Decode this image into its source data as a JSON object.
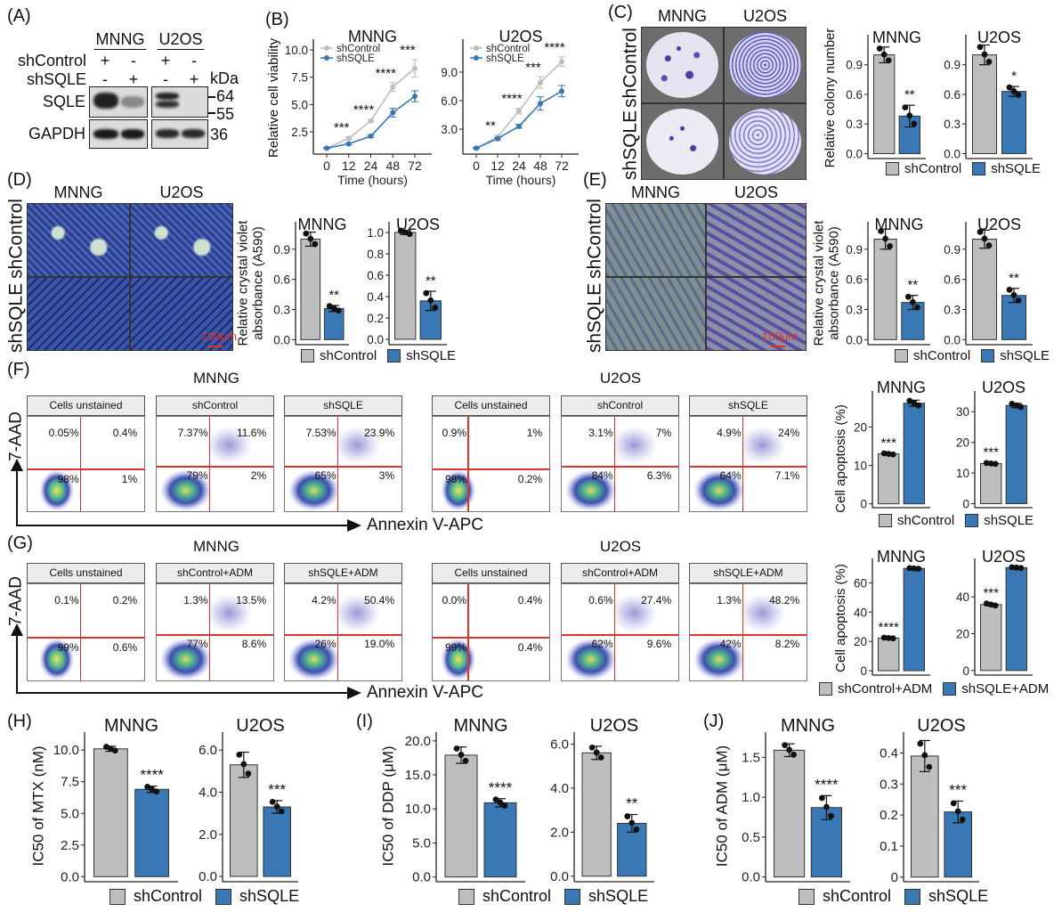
{
  "panel_labels": [
    "(A)",
    "(B)",
    "(C)",
    "(D)",
    "(E)",
    "(F)",
    "(G)",
    "(H)",
    "(I)",
    "(J)"
  ],
  "colors": {
    "control": "#BEBEBE",
    "sqle": "#3A78B5",
    "quadrant": "#E0312B",
    "scale_bar": "#E0312B"
  },
  "panelA": {
    "cell_lines": [
      "MNNG",
      "U2OS"
    ],
    "rows": [
      {
        "label": "shControl",
        "signs": [
          "+",
          "-",
          "+",
          "-"
        ]
      },
      {
        "label": "shSQLE",
        "signs": [
          "-",
          "+",
          "-",
          "+"
        ]
      }
    ],
    "kda_label": "kDa",
    "blots": [
      {
        "name": "SQLE",
        "markers": [
          "64",
          "55"
        ]
      },
      {
        "name": "GAPDH",
        "markers": [
          "36"
        ]
      }
    ]
  },
  "panelC": {
    "columns": [
      "MNNG",
      "U2OS"
    ],
    "rows": [
      "shControl",
      "shSQLE"
    ]
  },
  "panelD": {
    "columns": [
      "MNNG",
      "U2OS"
    ],
    "rows": [
      "shControl",
      "shSQLE"
    ],
    "scale_bar": "100μm"
  },
  "panelE": {
    "columns": [
      "MNNG",
      "U2OS"
    ],
    "rows": [
      "shControl",
      "shSQLE"
    ],
    "scale_bar": "100μm"
  },
  "flow": [
    {
      "panel": "F",
      "y_axis": "7-AAD",
      "x_axis": "Annexin V-APC",
      "groups": [
        {
          "title": "MNNG",
          "plots": [
            {
              "label": "Cells unstained",
              "quadrants": [
                "0.05%",
                "0.4%",
                "98%",
                "1%"
              ]
            },
            {
              "label": "shControl",
              "quadrants": [
                "7.37%",
                "11.6%",
                "79%",
                "2%"
              ]
            },
            {
              "label": "shSQLE",
              "quadrants": [
                "7.53%",
                "23.9%",
                "65%",
                "3%"
              ]
            }
          ]
        },
        {
          "title": "U2OS",
          "plots": [
            {
              "label": "Cells unstained",
              "quadrants": [
                "0.9%",
                "1%",
                "98%",
                "0.2%"
              ]
            },
            {
              "label": "shControl",
              "quadrants": [
                "3.1%",
                "7%",
                "84%",
                "6.3%"
              ]
            },
            {
              "label": "shSQLE",
              "quadrants": [
                "4.9%",
                "24%",
                "64%",
                "7.1%"
              ]
            }
          ]
        }
      ]
    },
    {
      "panel": "G",
      "y_axis": "7-AAD",
      "x_axis": "Annexin V-APC",
      "groups": [
        {
          "title": "MNNG",
          "plots": [
            {
              "label": "Cells unstained",
              "quadrants": [
                "0.1%",
                "0.2%",
                "99%",
                "0.6%"
              ]
            },
            {
              "label": "shControl+ADM",
              "quadrants": [
                "1.3%",
                "13.5%",
                "77%",
                "8.6%"
              ]
            },
            {
              "label": "shSQLE+ADM",
              "quadrants": [
                "4.2%",
                "50.4%",
                "26%",
                "19.0%"
              ]
            }
          ]
        },
        {
          "title": "U2OS",
          "plots": [
            {
              "label": "Cells unstained",
              "quadrants": [
                "0.0%",
                "0.4%",
                "99%",
                "0.4%"
              ]
            },
            {
              "label": "shControl+ADM",
              "quadrants": [
                "0.6%",
                "27.4%",
                "62%",
                "9.6%"
              ]
            },
            {
              "label": "shSQLE+ADM",
              "quadrants": [
                "1.3%",
                "48.2%",
                "42%",
                "8.2%"
              ]
            }
          ]
        }
      ]
    }
  ],
  "legends": {
    "C": [
      "shControl",
      "shSQLE"
    ],
    "D": [
      "shControl",
      "shSQLE"
    ],
    "E": [
      "shControl",
      "shSQLE"
    ],
    "F": [
      "shControl",
      "shSQLE"
    ],
    "G": [
      "shControl+ADM",
      "shSQLE+ADM"
    ],
    "H": [
      "shControl",
      "shSQLE"
    ],
    "I": [
      "shControl",
      "shSQLE"
    ],
    "J": [
      "shControl",
      "shSQLE"
    ]
  },
  "chart_data": [
    {
      "id": "B-MNNG",
      "type": "line",
      "title": "MNNG",
      "xlabel": "Time (hours)",
      "ylabel": "Relative cell viability",
      "x": [
        0,
        12,
        24,
        48,
        72
      ],
      "ylim": [
        0.46,
        10.49
      ],
      "yticks": [
        2.5,
        5,
        7.5,
        10
      ],
      "ytick_labels": [
        "2.5",
        "5.0",
        "7.5",
        "10.0"
      ],
      "legend": "top-left",
      "series": [
        {
          "name": "shControl",
          "values": [
            1.0,
            1.9,
            3.5,
            6.6,
            8.3
          ],
          "errors": [
            0.05,
            0.12,
            0.12,
            0.4,
            0.8
          ]
        },
        {
          "name": "shSQLE",
          "values": [
            1.0,
            1.4,
            2.1,
            4.25,
            5.75
          ],
          "errors": [
            0.05,
            0.1,
            0.12,
            0.4,
            0.5
          ]
        }
      ],
      "sig": [
        "",
        "***",
        "****",
        "****",
        "***"
      ]
    },
    {
      "id": "B-U2OS",
      "type": "line",
      "title": "U2OS",
      "xlabel": "Time (hours)",
      "ylabel": "",
      "x": [
        0,
        12,
        24,
        48,
        72
      ],
      "ylim": [
        0.38,
        11.9
      ],
      "yticks": [
        3,
        6,
        9
      ],
      "ytick_labels": [
        "3.0",
        "6.0",
        "9.0"
      ],
      "legend": "top-left",
      "series": [
        {
          "name": "shControl",
          "values": [
            1.0,
            2.2,
            4.9,
            7.9,
            10.1
          ],
          "errors": [
            0.05,
            0.15,
            0.3,
            0.6,
            0.5
          ]
        },
        {
          "name": "shSQLE",
          "values": [
            1.0,
            2.0,
            3.3,
            5.7,
            7.0
          ],
          "errors": [
            0.05,
            0.12,
            0.2,
            0.7,
            0.6
          ]
        }
      ],
      "sig": [
        "",
        "**",
        "****",
        "***",
        "****"
      ]
    },
    {
      "id": "C-MNNG",
      "type": "bar",
      "title": "MNNG",
      "ylabel": "Relative colony number",
      "categories": [
        "shControl",
        "shSQLE"
      ],
      "values": [
        1.0,
        0.38
      ],
      "errors": [
        0.08,
        0.11
      ],
      "sig": "**",
      "sig_over": 1,
      "ylim": [
        -0.05,
        1.15
      ],
      "yticks": [
        0,
        0.3,
        0.6,
        0.9
      ],
      "ytick_labels": [
        "0.0",
        "0.3",
        "0.6",
        "0.9"
      ]
    },
    {
      "id": "C-U2OS",
      "type": "bar",
      "title": "U2OS",
      "ylabel": "",
      "categories": [
        "shControl",
        "shSQLE"
      ],
      "values": [
        1.0,
        0.63
      ],
      "errors": [
        0.1,
        0.05
      ],
      "sig": "*",
      "sig_over": 1,
      "ylim": [
        -0.05,
        1.15
      ],
      "yticks": [
        0,
        0.3,
        0.6,
        0.9
      ],
      "ytick_labels": [
        "0.0",
        "0.3",
        "0.6",
        "0.9"
      ]
    },
    {
      "id": "D-MNNG",
      "type": "bar",
      "title": "MNNG",
      "ylabel": "Relative crystal violet absorbance (A590)",
      "categories": [
        "shControl",
        "shSQLE"
      ],
      "values": [
        1.0,
        0.31
      ],
      "errors": [
        0.07,
        0.03
      ],
      "sig": "**",
      "sig_over": 1,
      "ylim": [
        -0.05,
        1.12
      ],
      "yticks": [
        0,
        0.3,
        0.6,
        0.9
      ],
      "ytick_labels": [
        "0.0",
        "0.3",
        "0.6",
        "0.9"
      ]
    },
    {
      "id": "D-U2OS",
      "type": "bar",
      "title": "U2OS",
      "ylabel": "",
      "categories": [
        "shControl",
        "shSQLE"
      ],
      "values": [
        1.0,
        0.36
      ],
      "errors": [
        0.02,
        0.09
      ],
      "sig": "**",
      "sig_over": 1,
      "ylim": [
        -0.05,
        1.05
      ],
      "yticks": [
        0,
        0.2,
        0.4,
        0.6,
        0.8,
        1.0
      ],
      "ytick_labels": [
        "0.0",
        "0.2",
        "0.4",
        "0.6",
        "0.8",
        "1.0"
      ]
    },
    {
      "id": "E-MNNG",
      "type": "bar",
      "title": "MNNG",
      "ylabel": "Relative crystal violet absorbance (A590)",
      "categories": [
        "shControl",
        "shSQLE"
      ],
      "values": [
        1.0,
        0.37
      ],
      "errors": [
        0.1,
        0.07
      ],
      "sig": "**",
      "sig_over": 1,
      "ylim": [
        -0.05,
        1.12
      ],
      "yticks": [
        0,
        0.3,
        0.6,
        0.9
      ],
      "ytick_labels": [
        "0.0",
        "0.3",
        "0.6",
        "0.9"
      ]
    },
    {
      "id": "E-U2OS",
      "type": "bar",
      "title": "U2OS",
      "ylabel": "",
      "categories": [
        "shControl",
        "shSQLE"
      ],
      "values": [
        1.0,
        0.44
      ],
      "errors": [
        0.09,
        0.07
      ],
      "sig": "**",
      "sig_over": 1,
      "ylim": [
        -0.05,
        1.12
      ],
      "yticks": [
        0,
        0.3,
        0.6,
        0.9
      ],
      "ytick_labels": [
        "0.0",
        "0.3",
        "0.6",
        "0.9"
      ]
    },
    {
      "id": "F-MNNG",
      "type": "bar",
      "title": "MNNG",
      "ylabel": "Cell apoptosis (%)",
      "categories": [
        "shControl",
        "shSQLE"
      ],
      "values": [
        13.0,
        26.2
      ],
      "errors": [
        0.2,
        0.8
      ],
      "sig": "***",
      "sig_over": 0,
      "ylim": [
        -1,
        28
      ],
      "yticks": [
        0,
        10,
        20
      ],
      "ytick_labels": [
        "0",
        "10",
        "20"
      ]
    },
    {
      "id": "F-U2OS",
      "type": "bar",
      "title": "U2OS",
      "ylabel": "",
      "categories": [
        "shControl",
        "shSQLE"
      ],
      "values": [
        13.1,
        32.0
      ],
      "errors": [
        0.2,
        0.7
      ],
      "sig": "***",
      "sig_over": 0,
      "ylim": [
        -1.3,
        35
      ],
      "yticks": [
        0,
        10,
        20,
        30
      ],
      "ytick_labels": [
        "0",
        "10",
        "20",
        "30"
      ]
    },
    {
      "id": "G-MNNG",
      "type": "bar",
      "title": "MNNG",
      "ylabel": "Cell apoptosis (%)",
      "categories": [
        "shControl+ADM",
        "shSQLE+ADM"
      ],
      "values": [
        22.3,
        69.8
      ],
      "errors": [
        0.3,
        0.3
      ],
      "sig": "****",
      "sig_over": 0,
      "ylim": [
        -3,
        73
      ],
      "yticks": [
        0,
        20,
        40,
        60
      ],
      "ytick_labels": [
        "0",
        "20",
        "40",
        "60"
      ]
    },
    {
      "id": "G-U2OS",
      "type": "bar",
      "title": "U2OS",
      "ylabel": "",
      "categories": [
        "shControl+ADM",
        "shSQLE+ADM"
      ],
      "values": [
        35.8,
        55.9
      ],
      "errors": [
        0.7,
        0.3
      ],
      "sig": "***",
      "sig_over": 0,
      "ylim": [
        -2.5,
        58
      ],
      "yticks": [
        0,
        20,
        40
      ],
      "ytick_labels": [
        "0",
        "20",
        "40"
      ]
    },
    {
      "id": "H-MNNG",
      "type": "bar",
      "title": "MNNG",
      "ylabel": "IC50 of MTX (nM)",
      "categories": [
        "shControl",
        "shSQLE"
      ],
      "values": [
        10.1,
        6.9
      ],
      "errors": [
        0.2,
        0.25
      ],
      "sig": "****",
      "sig_over": 1,
      "ylim": [
        -0.4,
        11
      ],
      "yticks": [
        0,
        2.5,
        5,
        7.5,
        10
      ],
      "ytick_labels": [
        "0.0",
        "2.5",
        "5.0",
        "7.5",
        "10.0"
      ]
    },
    {
      "id": "H-U2OS",
      "type": "bar",
      "title": "U2OS",
      "ylabel": "",
      "categories": [
        "shControl",
        "shSQLE"
      ],
      "values": [
        5.3,
        3.3
      ],
      "errors": [
        0.6,
        0.3
      ],
      "sig": "***",
      "sig_over": 1,
      "ylim": [
        -0.25,
        6.6
      ],
      "yticks": [
        0,
        2,
        4,
        6
      ],
      "ytick_labels": [
        "0.0",
        "2.0",
        "4.0",
        "6.0"
      ]
    },
    {
      "id": "I-MNNG",
      "type": "bar",
      "title": "MNNG",
      "ylabel": "IC50 of DDP (μM)",
      "categories": [
        "shControl",
        "shSQLE"
      ],
      "values": [
        17.9,
        10.9
      ],
      "errors": [
        1.2,
        0.6
      ],
      "sig": "****",
      "sig_over": 1,
      "ylim": [
        -0.7,
        20.5
      ],
      "yticks": [
        0,
        5,
        10,
        15,
        20
      ],
      "ytick_labels": [
        "0.0",
        "5.0",
        "10.0",
        "15.0",
        "20.0"
      ]
    },
    {
      "id": "I-U2OS",
      "type": "bar",
      "title": "U2OS",
      "ylabel": "",
      "categories": [
        "shControl",
        "shSQLE"
      ],
      "values": [
        5.6,
        2.4
      ],
      "errors": [
        0.3,
        0.4
      ],
      "sig": "**",
      "sig_over": 1,
      "ylim": [
        -0.25,
        6.3
      ],
      "yticks": [
        0,
        2,
        4,
        6
      ],
      "ytick_labels": [
        "0.0",
        "2.0",
        "4.0",
        "6.0"
      ]
    },
    {
      "id": "J-MNNG",
      "type": "bar",
      "title": "MNNG",
      "ylabel": "IC50 of ADM (μM)",
      "categories": [
        "shControl",
        "shSQLE"
      ],
      "values": [
        1.59,
        0.87
      ],
      "errors": [
        0.08,
        0.15
      ],
      "sig": "****",
      "sig_over": 1,
      "ylim": [
        -0.06,
        1.75
      ],
      "yticks": [
        0,
        0.5,
        1.0,
        1.5
      ],
      "ytick_labels": [
        "0.0",
        "0.5",
        "1.0",
        "1.5"
      ]
    },
    {
      "id": "J-U2OS",
      "type": "bar",
      "title": "U2OS",
      "ylabel": "",
      "categories": [
        "shControl",
        "shSQLE"
      ],
      "values": [
        0.39,
        0.21
      ],
      "errors": [
        0.05,
        0.035
      ],
      "sig": "***",
      "sig_over": 1,
      "ylim": [
        -0.015,
        0.45
      ],
      "yticks": [
        0,
        0.1,
        0.2,
        0.3,
        0.4
      ],
      "ytick_labels": [
        "0",
        "0.1",
        "0.2",
        "0.3",
        "0.4"
      ]
    }
  ]
}
